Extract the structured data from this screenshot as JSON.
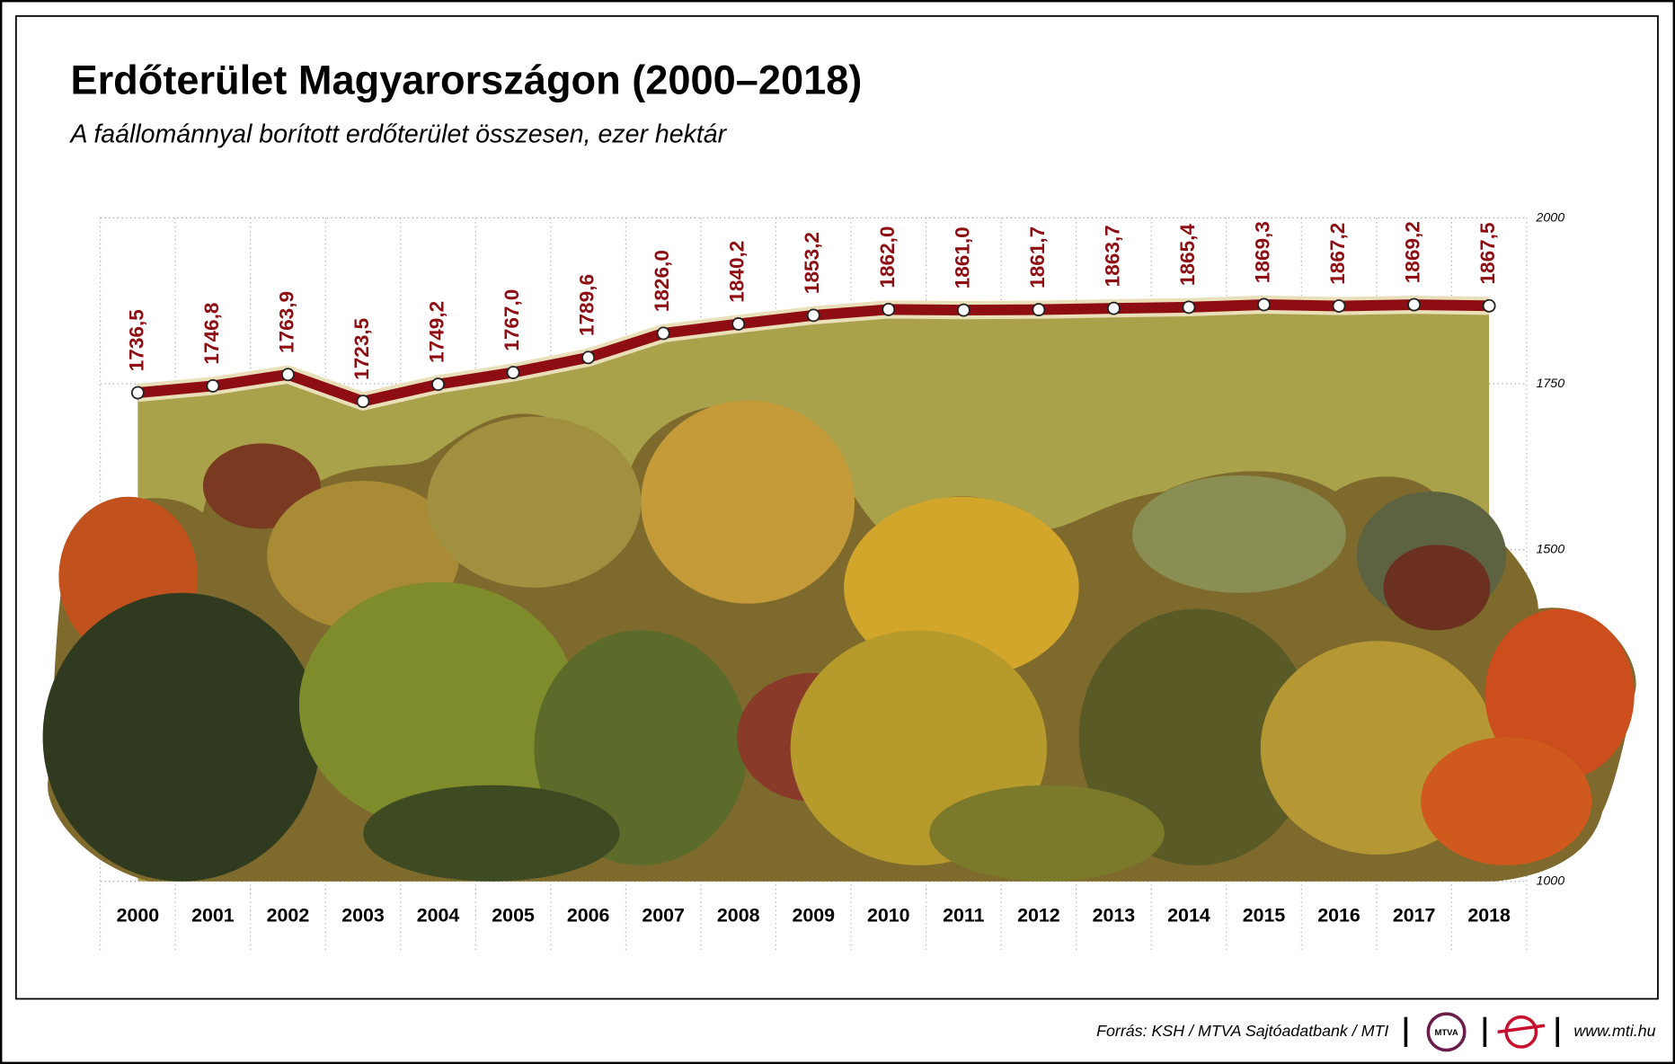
{
  "chart_data": {
    "type": "area",
    "title": "Erdőterület Magyarországon (2000–2018)",
    "subtitle": "A faállománnyal borított erdőterület összesen, ezer hektár",
    "categories": [
      "2000",
      "2001",
      "2002",
      "2003",
      "2004",
      "2005",
      "2006",
      "2007",
      "2008",
      "2009",
      "2010",
      "2011",
      "2012",
      "2013",
      "2014",
      "2015",
      "2016",
      "2017",
      "2018"
    ],
    "values": [
      1736.5,
      1746.8,
      1763.9,
      1723.5,
      1749.2,
      1767.0,
      1789.6,
      1826.0,
      1840.2,
      1853.2,
      1862.0,
      1861.0,
      1861.7,
      1863.7,
      1865.4,
      1869.3,
      1867.2,
      1869.2,
      1867.5
    ],
    "value_labels": [
      "1736,5",
      "1746,8",
      "1763,9",
      "1723,5",
      "1749,2",
      "1767,0",
      "1789,6",
      "1826,0",
      "1840,2",
      "1853,2",
      "1862,0",
      "1861,0",
      "1861,7",
      "1863,7",
      "1865,4",
      "1869,3",
      "1867,2",
      "1869,2",
      "1867,5"
    ],
    "color": "#8e0d12",
    "area_color": "#a9a24b",
    "ylim": [
      1000,
      2000
    ],
    "yticks": [
      1000,
      1500,
      1750,
      2000
    ],
    "grid": true,
    "source": "Forrás: KSH / MTVA Sajtóadatbank / MTI",
    "logo": "MTVA",
    "website": "www.mti.hu"
  }
}
